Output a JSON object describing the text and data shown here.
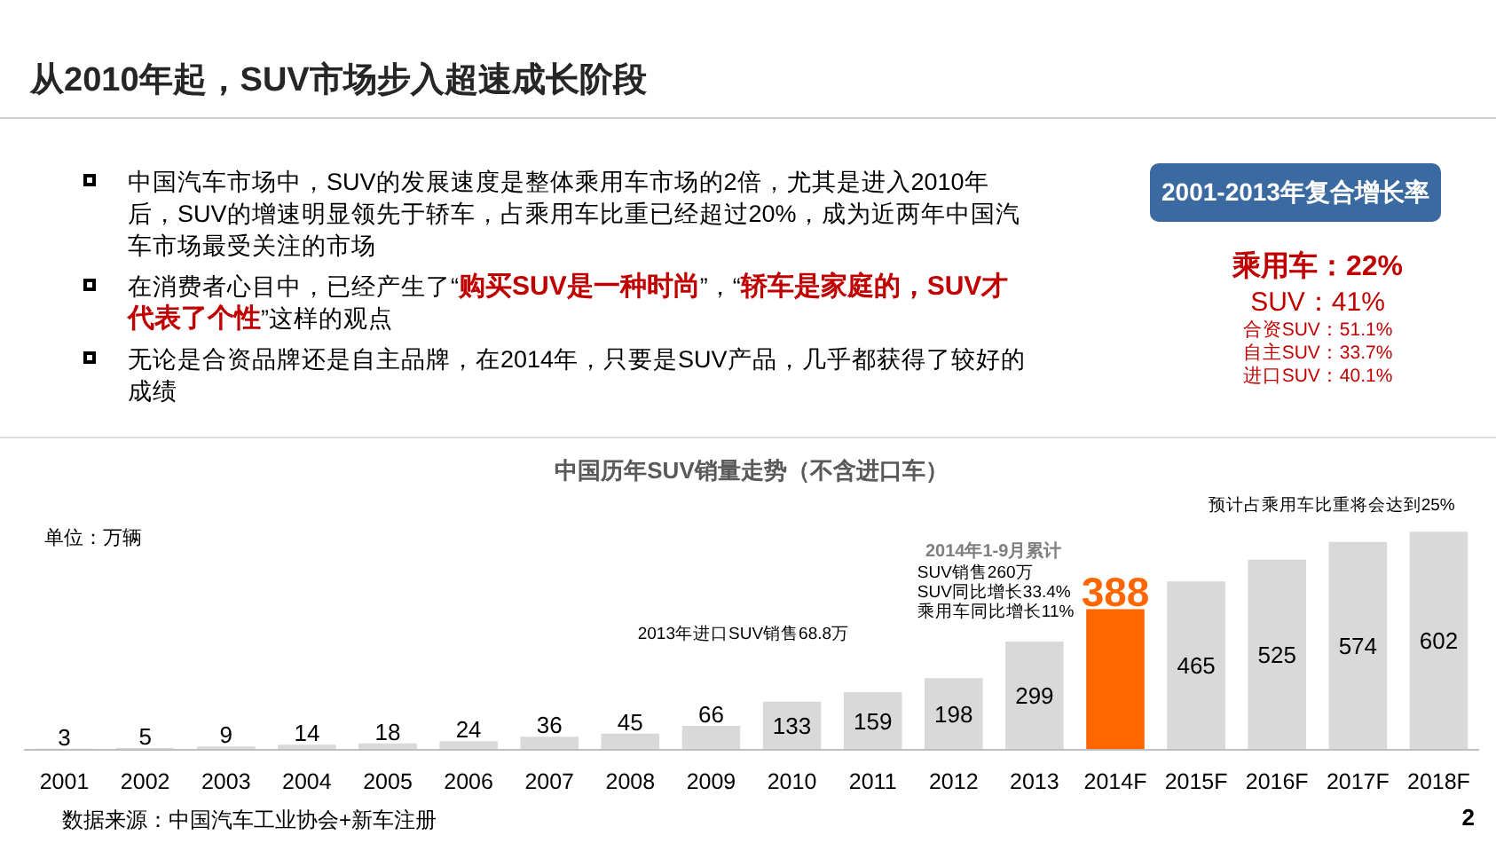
{
  "chart_data": {
    "type": "bar",
    "title": "从2010年起，SUV市场步入超速成长阶段",
    "subtitle": "中国历年SUV销量走势（不含进口车）",
    "categories": [
      "2001",
      "2002",
      "2003",
      "2004",
      "2005",
      "2006",
      "2007",
      "2008",
      "2009",
      "2010",
      "2011",
      "2012",
      "2013",
      "2014F",
      "2015F",
      "2016F",
      "2017F",
      "2018F"
    ],
    "values": [
      3,
      5,
      9,
      14,
      18,
      24,
      36,
      45,
      66,
      133,
      159,
      198,
      299,
      388,
      465,
      525,
      574,
      602
    ],
    "colors": [
      "#d9d9d9",
      "#d9d9d9",
      "#d9d9d9",
      "#d9d9d9",
      "#d9d9d9",
      "#d9d9d9",
      "#d9d9d9",
      "#d9d9d9",
      "#d9d9d9",
      "#d9d9d9",
      "#d9d9d9",
      "#d9d9d9",
      "#d9d9d9",
      "#ff6600",
      "#d9d9d9",
      "#d9d9d9",
      "#d9d9d9",
      "#d9d9d9"
    ],
    "data_labels": true,
    "annotations": [
      "中国汽车市场中，SUV的发展速度是整体乘用车市场的2倍，尤其是进入2010年后，SUV的增速明显领先于轿车，占乘用车比重已经超过20%，成为近两年中国汽车市场最受关注的市场",
      "在消费者心目中，已经产生了“",
      "购买SUV是一种时尚",
      "”，“",
      "轿车是家庭的，SUV才代表了个性",
      "”这样的观点",
      "无论是合资品牌还是自主品牌，在2014年，只要是SUV产品，几乎都获得了较好的成绩",
      "2001-2013年复合增长率",
      "乘用车：22%",
      "SUV：41%",
      "合资SUV：51.1%",
      "自主SUV：33.7%",
      "进口SUV：40.1%",
      "单位：万辆",
      "2014年1-9月累计",
      "SUV销售260万",
      "SUV同比增长33.4%",
      "乘用车同比增长11%",
      "2013年进口SUV销售68.8万",
      "预计占乘用车比重将会达到25%",
      "数据来源：中国汽车工业协会+新车注册",
      "2"
    ]
  }
}
